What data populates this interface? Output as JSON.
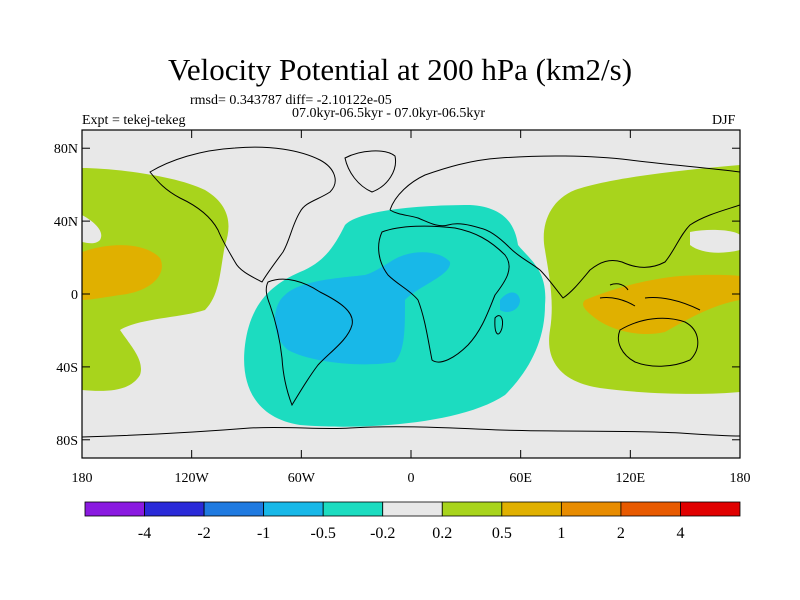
{
  "header": {
    "title": "Velocity Potential at 200 hPa (km2/s)",
    "stats": "rmsd= 0.343787 diff= -2.10122e-05",
    "period": "07.0kyr-06.5kyr - 07.0kyr-06.5kyr",
    "expt": "Expt = tekej-tekeg",
    "season": "DJF"
  },
  "map": {
    "background_color": "#e8e8e8",
    "lat_ticks": [
      {
        "value": 80,
        "label": "80N"
      },
      {
        "value": 40,
        "label": "40N"
      },
      {
        "value": 0,
        "label": "0"
      },
      {
        "value": -40,
        "label": "40S"
      },
      {
        "value": -80,
        "label": "80S"
      }
    ],
    "lon_ticks": [
      {
        "value": -180,
        "label": "180"
      },
      {
        "value": -120,
        "label": "120W"
      },
      {
        "value": -60,
        "label": "60W"
      },
      {
        "value": 0,
        "label": "0"
      },
      {
        "value": 60,
        "label": "60E"
      },
      {
        "value": 120,
        "label": "120E"
      },
      {
        "value": 180,
        "label": "180"
      }
    ],
    "lon_range": [
      -180,
      180
    ],
    "lat_range": [
      -90,
      90
    ]
  },
  "colorbar": {
    "colors": [
      "#8a1ae0",
      "#2a2ad8",
      "#1f7ae0",
      "#18b8e8",
      "#1cdcc0",
      "#e8e8e8",
      "#a8d41c",
      "#e0b000",
      "#e88c00",
      "#e85a00",
      "#e00000"
    ],
    "labels": [
      "-4",
      "-2",
      "-1",
      "-0.5",
      "-0.2",
      "0.2",
      "0.5",
      "1",
      "2",
      "4"
    ]
  }
}
